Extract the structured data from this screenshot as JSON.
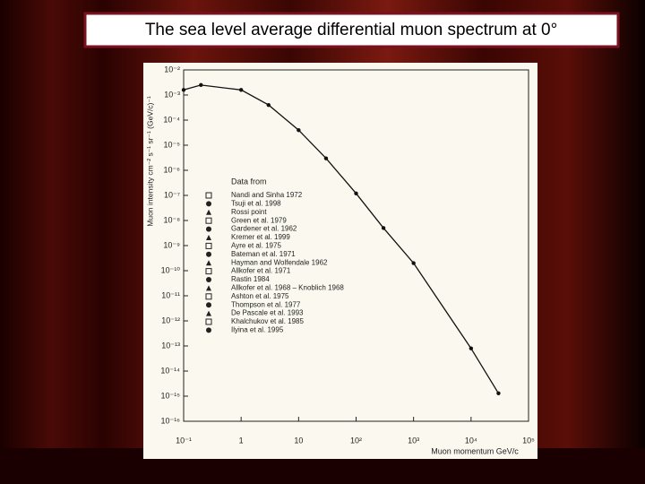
{
  "chart_data": {
    "type": "line",
    "title": "The sea level average differential muon spectrum at 0°",
    "x_label": "Muon momentum GeV/c",
    "y_label": "Muon intensity cm⁻² s⁻¹ sr⁻¹ (GeV/c)⁻¹",
    "legend_title": "Data from",
    "legend_entries": [
      "Nandi and Sinha 1972",
      "Tsuji et al. 1998",
      "Rossi point",
      "Green et al. 1979",
      "Gardener et al. 1962",
      "Kremer et al. 1999",
      "Ayre et al. 1975",
      "Bateman et al. 1971",
      "Hayman and Wolfendale 1962",
      "Allkofer et al. 1971",
      "Rastin 1984",
      "Allkofer et al. 1968 – Knoblich 1968",
      "Ashton et al. 1975",
      "Thompson et al. 1977",
      "De Pascale et al. 1993",
      "Khalchukov et al. 1985",
      "Ilyina et al. 1995"
    ],
    "x": [
      0.1,
      0.2,
      1,
      3,
      10,
      30,
      100,
      300,
      1000,
      10000,
      30000
    ],
    "values": [
      0.0016,
      0.0025,
      0.0016,
      0.0004,
      4e-05,
      3e-06,
      1.2e-07,
      5e-09,
      2e-10,
      8e-14,
      1.3e-15
    ],
    "color": "#111111",
    "log_x": true,
    "log_y": true,
    "xlim": [
      0.1,
      100000
    ],
    "ylim": [
      1e-16,
      0.01
    ],
    "xticks": [
      {
        "value": 0.1,
        "label": "10⁻¹"
      },
      1,
      10,
      {
        "value": 100,
        "label": "10²"
      },
      {
        "value": 1000,
        "label": "10³"
      },
      {
        "value": 10000,
        "label": "10⁴"
      },
      {
        "value": 100000,
        "label": "10⁵"
      }
    ],
    "yticks": [
      {
        "value": 0.01,
        "label": "10⁻²"
      },
      {
        "value": 0.001,
        "label": "10⁻³"
      },
      {
        "value": 0.0001,
        "label": "10⁻⁴"
      },
      {
        "value": 1e-05,
        "label": "10⁻⁵"
      },
      {
        "value": 1e-06,
        "label": "10⁻⁶"
      },
      {
        "value": 1e-07,
        "label": "10⁻⁷"
      },
      {
        "value": 1e-08,
        "label": "10⁻⁸"
      },
      {
        "value": 1e-09,
        "label": "10⁻⁹"
      },
      {
        "value": 1e-10,
        "label": "10⁻¹⁰"
      },
      {
        "value": 1e-11,
        "label": "10⁻¹¹"
      },
      {
        "value": 1e-12,
        "label": "10⁻¹²"
      },
      {
        "value": 1e-13,
        "label": "10⁻¹³"
      },
      {
        "value": 1e-14,
        "label": "10⁻¹⁴"
      },
      {
        "value": 1e-15,
        "label": "10⁻¹⁵"
      },
      {
        "value": 1e-16,
        "label": "10⁻¹⁶"
      }
    ]
  }
}
